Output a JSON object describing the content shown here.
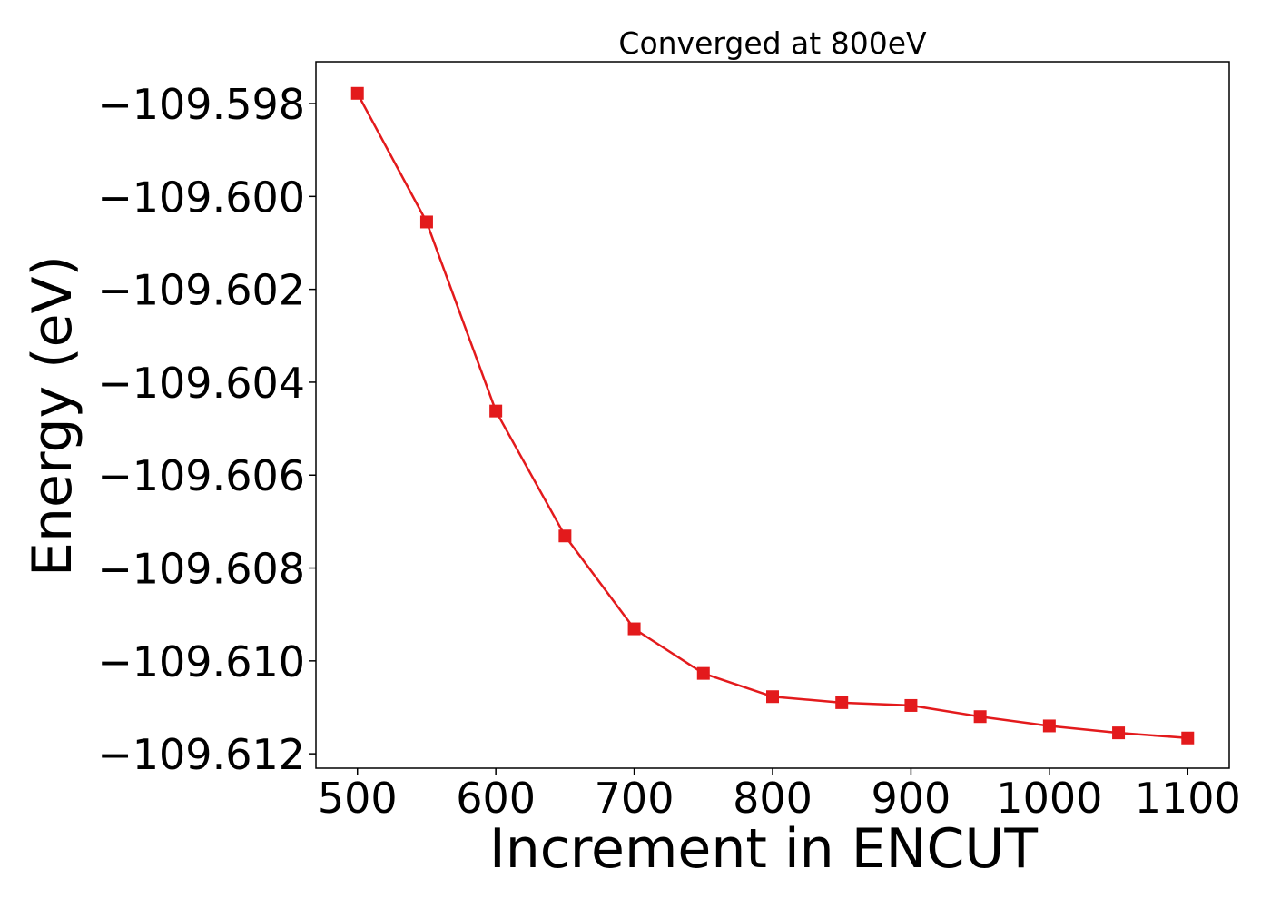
{
  "chart_data": {
    "type": "line",
    "title": "Converged at 800eV",
    "xlabel": "Increment in ENCUT",
    "ylabel": "Energy (eV)",
    "xlim": [
      470,
      1130
    ],
    "ylim": [
      -109.61231,
      -109.5971
    ],
    "xticks": [
      500,
      600,
      700,
      800,
      900,
      1000,
      1100
    ],
    "xtick_labels": [
      "500",
      "600",
      "700",
      "800",
      "900",
      "1000",
      "1100"
    ],
    "yticks": [
      -109.598,
      -109.6,
      -109.602,
      -109.604,
      -109.606,
      -109.608,
      -109.61,
      -109.612
    ],
    "ytick_labels": [
      "−109.598",
      "−109.600",
      "−109.602",
      "−109.604",
      "−109.606",
      "−109.608",
      "−109.610",
      "−109.612"
    ],
    "grid": false,
    "series": [
      {
        "color": "#e31a1c",
        "marker": "square",
        "x": [
          500,
          550,
          600,
          650,
          700,
          750,
          800,
          850,
          900,
          950,
          1000,
          1050,
          1100
        ],
        "y": [
          -109.59778,
          -109.60055,
          -109.60462,
          -109.60731,
          -109.60931,
          -109.61027,
          -109.61077,
          -109.6109,
          -109.61096,
          -109.6112,
          -109.6114,
          -109.61155,
          -109.61166
        ]
      }
    ]
  }
}
